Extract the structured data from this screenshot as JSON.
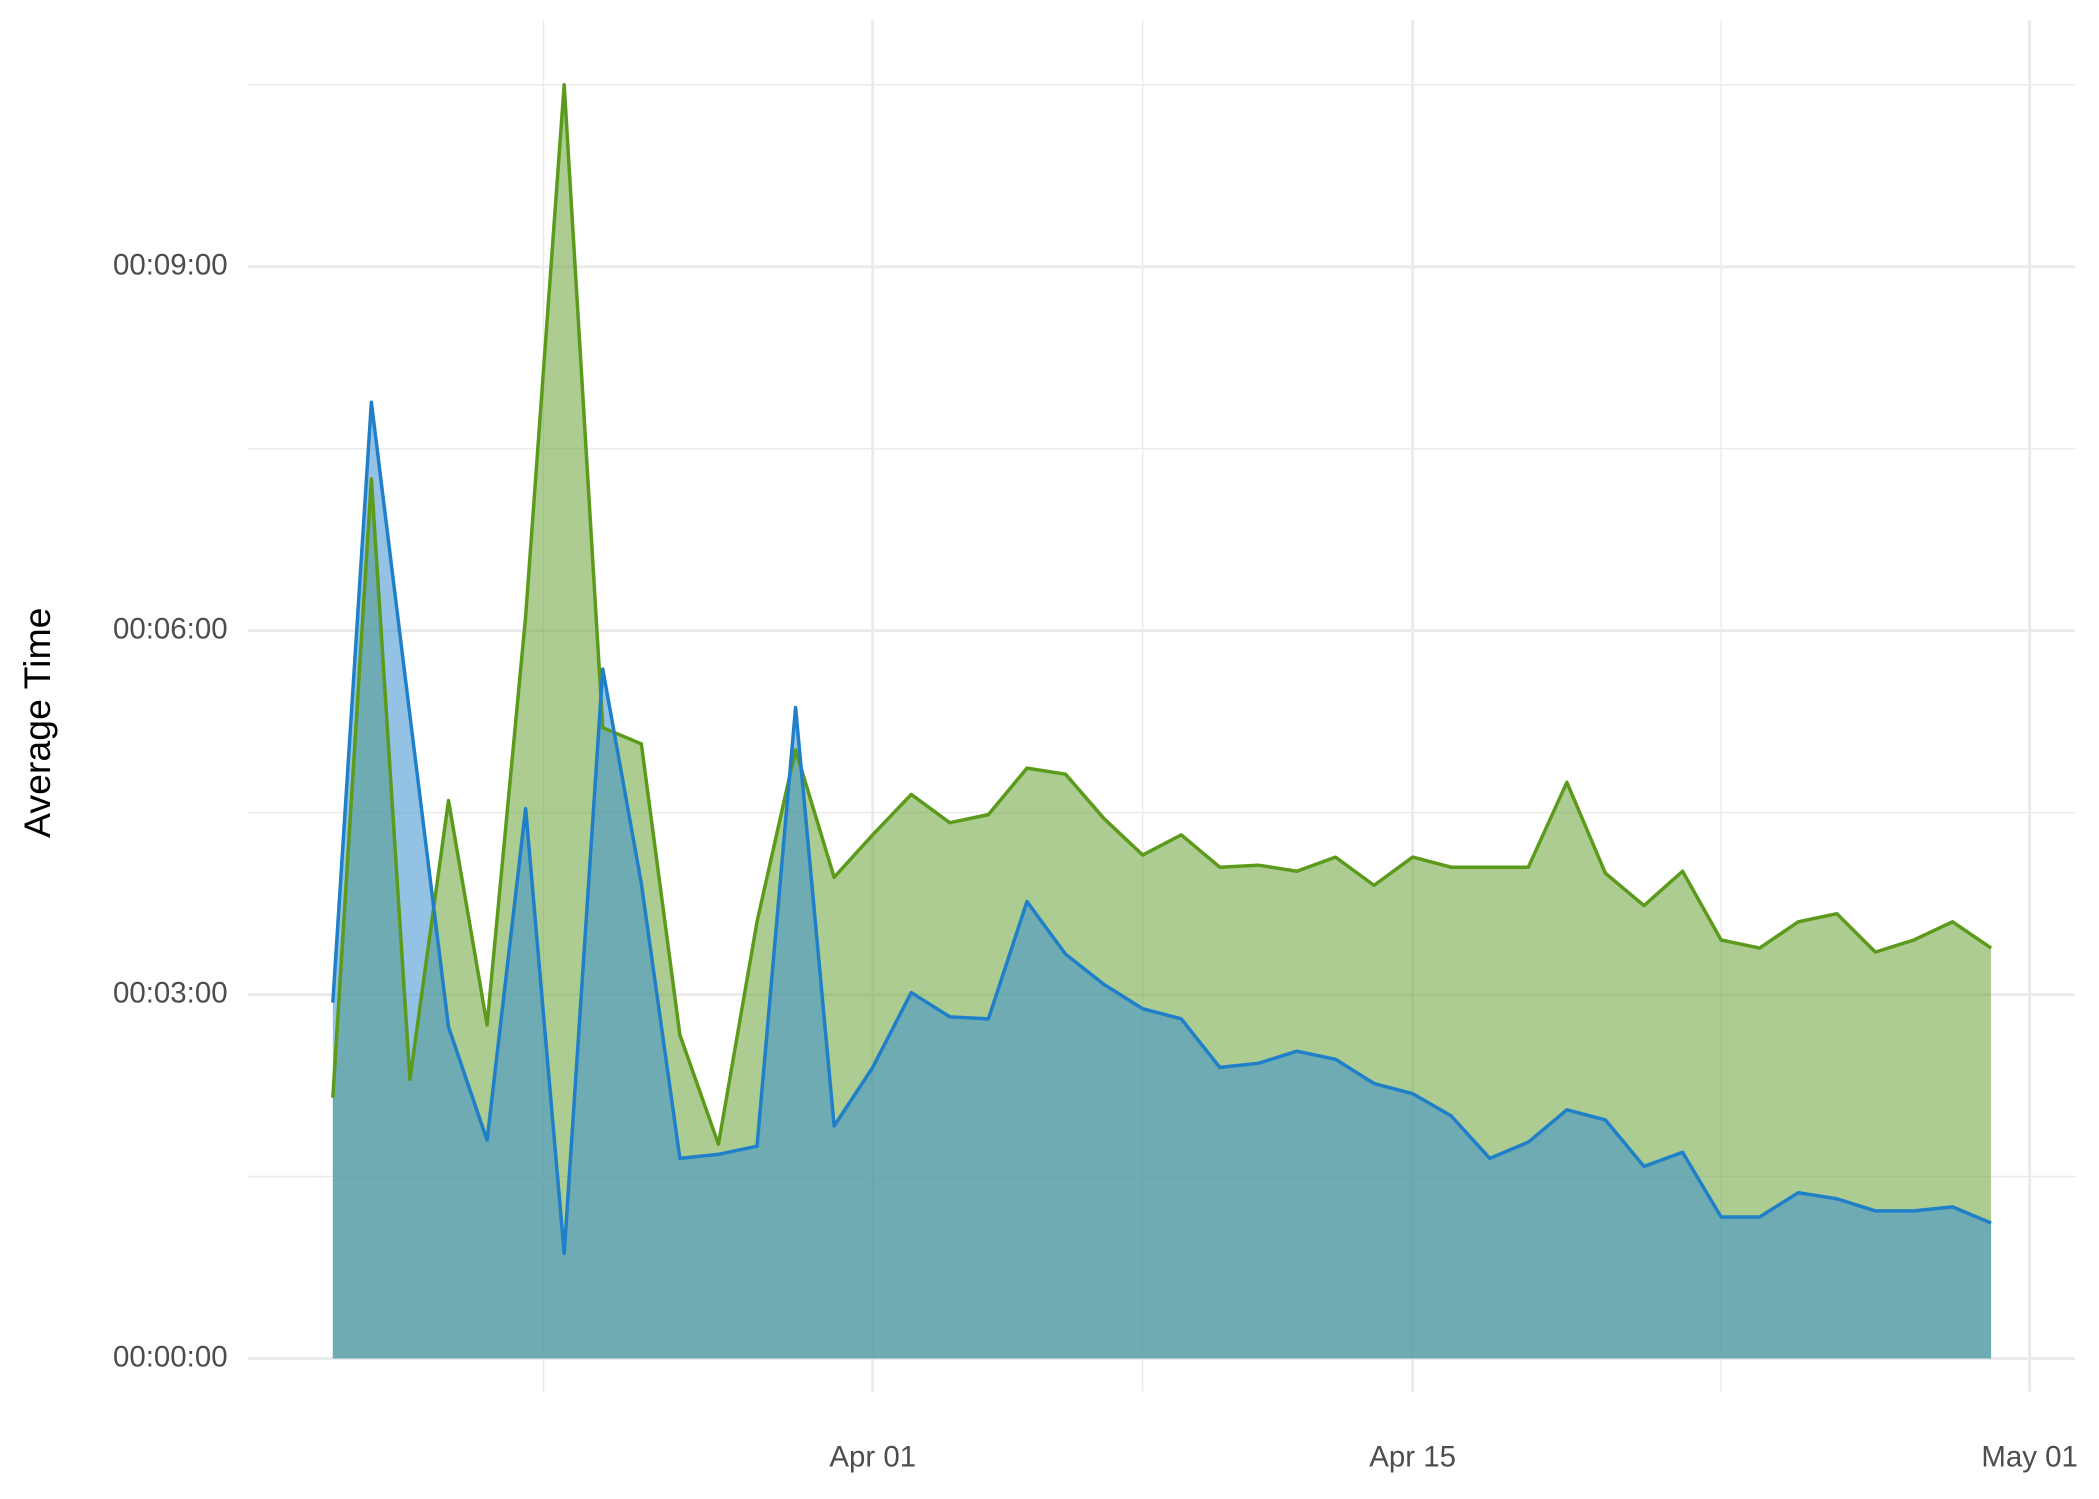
{
  "chart_data": {
    "type": "area",
    "y_label": "Average Time",
    "x": [
      "03-18",
      "03-19",
      "03-20",
      "03-21",
      "03-22",
      "03-23",
      "03-24",
      "03-25",
      "03-26",
      "03-27",
      "03-28",
      "03-29",
      "03-30",
      "03-31",
      "04-01",
      "04-02",
      "04-03",
      "04-04",
      "04-05",
      "04-06",
      "04-07",
      "04-08",
      "04-09",
      "04-10",
      "04-11",
      "04-12",
      "04-13",
      "04-14",
      "04-15",
      "04-16",
      "04-17",
      "04-18",
      "04-19",
      "04-20",
      "04-21",
      "04-22",
      "04-23",
      "04-24",
      "04-25",
      "04-26",
      "04-27",
      "04-28",
      "04-29",
      "04-30"
    ],
    "series": [
      {
        "color": "#5b9a1b",
        "fill": "#6aa336",
        "values": [
          129,
          435,
          138,
          276,
          165,
          367,
          630,
          312,
          304,
          160,
          106,
          216,
          301,
          238,
          259,
          279,
          265,
          269,
          292,
          289,
          267,
          249,
          259,
          243,
          244,
          241,
          248,
          234,
          248,
          243,
          243,
          243,
          285,
          240,
          224,
          241,
          207,
          203,
          216,
          220,
          201,
          207,
          216,
          203
        ]
      },
      {
        "color": "#1f7fc8",
        "fill": "#3b8fd0",
        "values": [
          176,
          473,
          318,
          164,
          108,
          272,
          52,
          341,
          235,
          99,
          101,
          105,
          322,
          115,
          144,
          181,
          169,
          168,
          226,
          200,
          185,
          173,
          168,
          144,
          146,
          152,
          148,
          136,
          131,
          120,
          99,
          107,
          123,
          118,
          95,
          102,
          70,
          70,
          82,
          79,
          73,
          73,
          75,
          67
        ]
      }
    ],
    "xlim": [
      "03-16",
      "05-02"
    ],
    "xticks": [
      {
        "value": "04-01",
        "label": "Apr 01"
      },
      {
        "value": "04-15",
        "label": "Apr 15"
      },
      {
        "value": "05-01",
        "label": "May 01"
      }
    ],
    "ylim": [
      -17,
      662
    ],
    "yticks": [
      {
        "value": 0,
        "label": "00:00:00"
      },
      {
        "value": 180,
        "label": "00:03:00"
      },
      {
        "value": 360,
        "label": "00:06:00"
      },
      {
        "value": 540,
        "label": "00:09:00"
      }
    ],
    "grid": true
  }
}
